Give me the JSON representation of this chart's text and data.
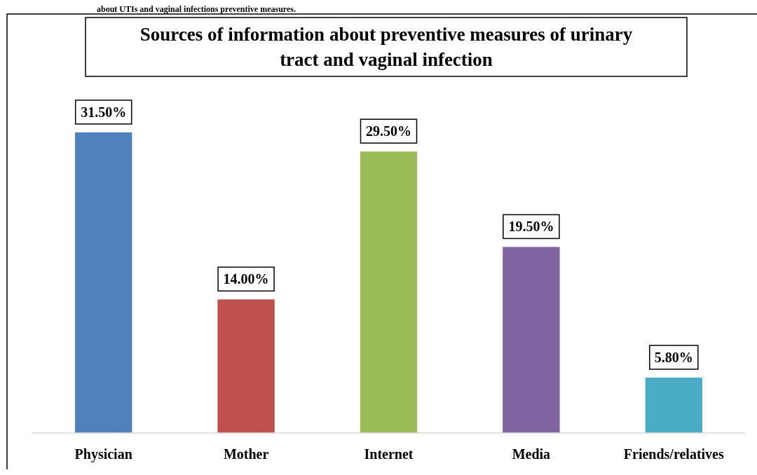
{
  "chart_data": {
    "type": "bar",
    "title": "Sources of information about preventive measures of urinary tract and vaginal infection",
    "annotations": [
      "about UTIs and vaginal infections preventive measures."
    ],
    "categories": [
      "Physician",
      "Mother",
      "Internet",
      "Media",
      "Friends/relatives"
    ],
    "values": [
      31.5,
      14.0,
      29.5,
      19.5,
      5.8
    ],
    "colors": [
      "#4f81bd",
      "#c0504d",
      "#9bbb59",
      "#8064a2",
      "#4bacc6"
    ],
    "value_labels": [
      "31.50%",
      "14.00%",
      "29.50%",
      "19.50%",
      "5.80%"
    ]
  }
}
